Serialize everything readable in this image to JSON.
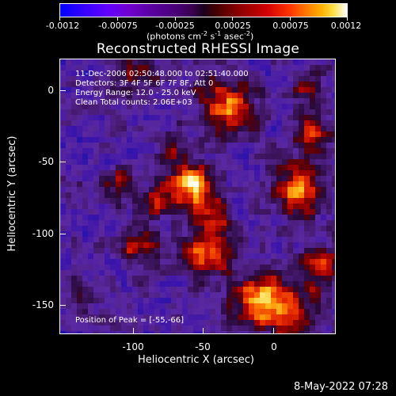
{
  "colorbar": {
    "tick_labels": [
      "-0.0012",
      "-0.00075",
      "-0.00025",
      "0.00025",
      "0.00075",
      "0.0012"
    ],
    "units_text": "(photons cm",
    "units_exp1": "-2",
    "units_mid": " s",
    "units_exp2": "-1",
    "units_mid2": " asec",
    "units_exp3": "-2",
    "units_end": ")"
  },
  "title": "Reconstructed RHESSI Image",
  "info": {
    "time_line": "11-Dec-2006 02:50:48.000 to 02:51:40.000",
    "detectors_line": "Detectors: 3F 4F 5F 6F 7F 8F, Att 0",
    "energy_line": "Energy Range: 12.0 - 25.0 keV",
    "clean_line": "Clean     Total counts: 2.06E+03",
    "peak_line": "Position of Peak = [-55,-66]"
  },
  "axes": {
    "x_label": "Heliocentric X (arcsec)",
    "y_label": "Heliocentric Y (arcsec)",
    "x_ticks": [
      "-100",
      "-50",
      "0"
    ],
    "y_ticks": [
      "0",
      "-50",
      "-100",
      "-150"
    ]
  },
  "timestamp": "8-May-2022 07:28",
  "colors": {
    "background": "#000000",
    "text": "#ffffff",
    "map_low": "#2b0d44",
    "map_peak": "#ffffff"
  }
}
